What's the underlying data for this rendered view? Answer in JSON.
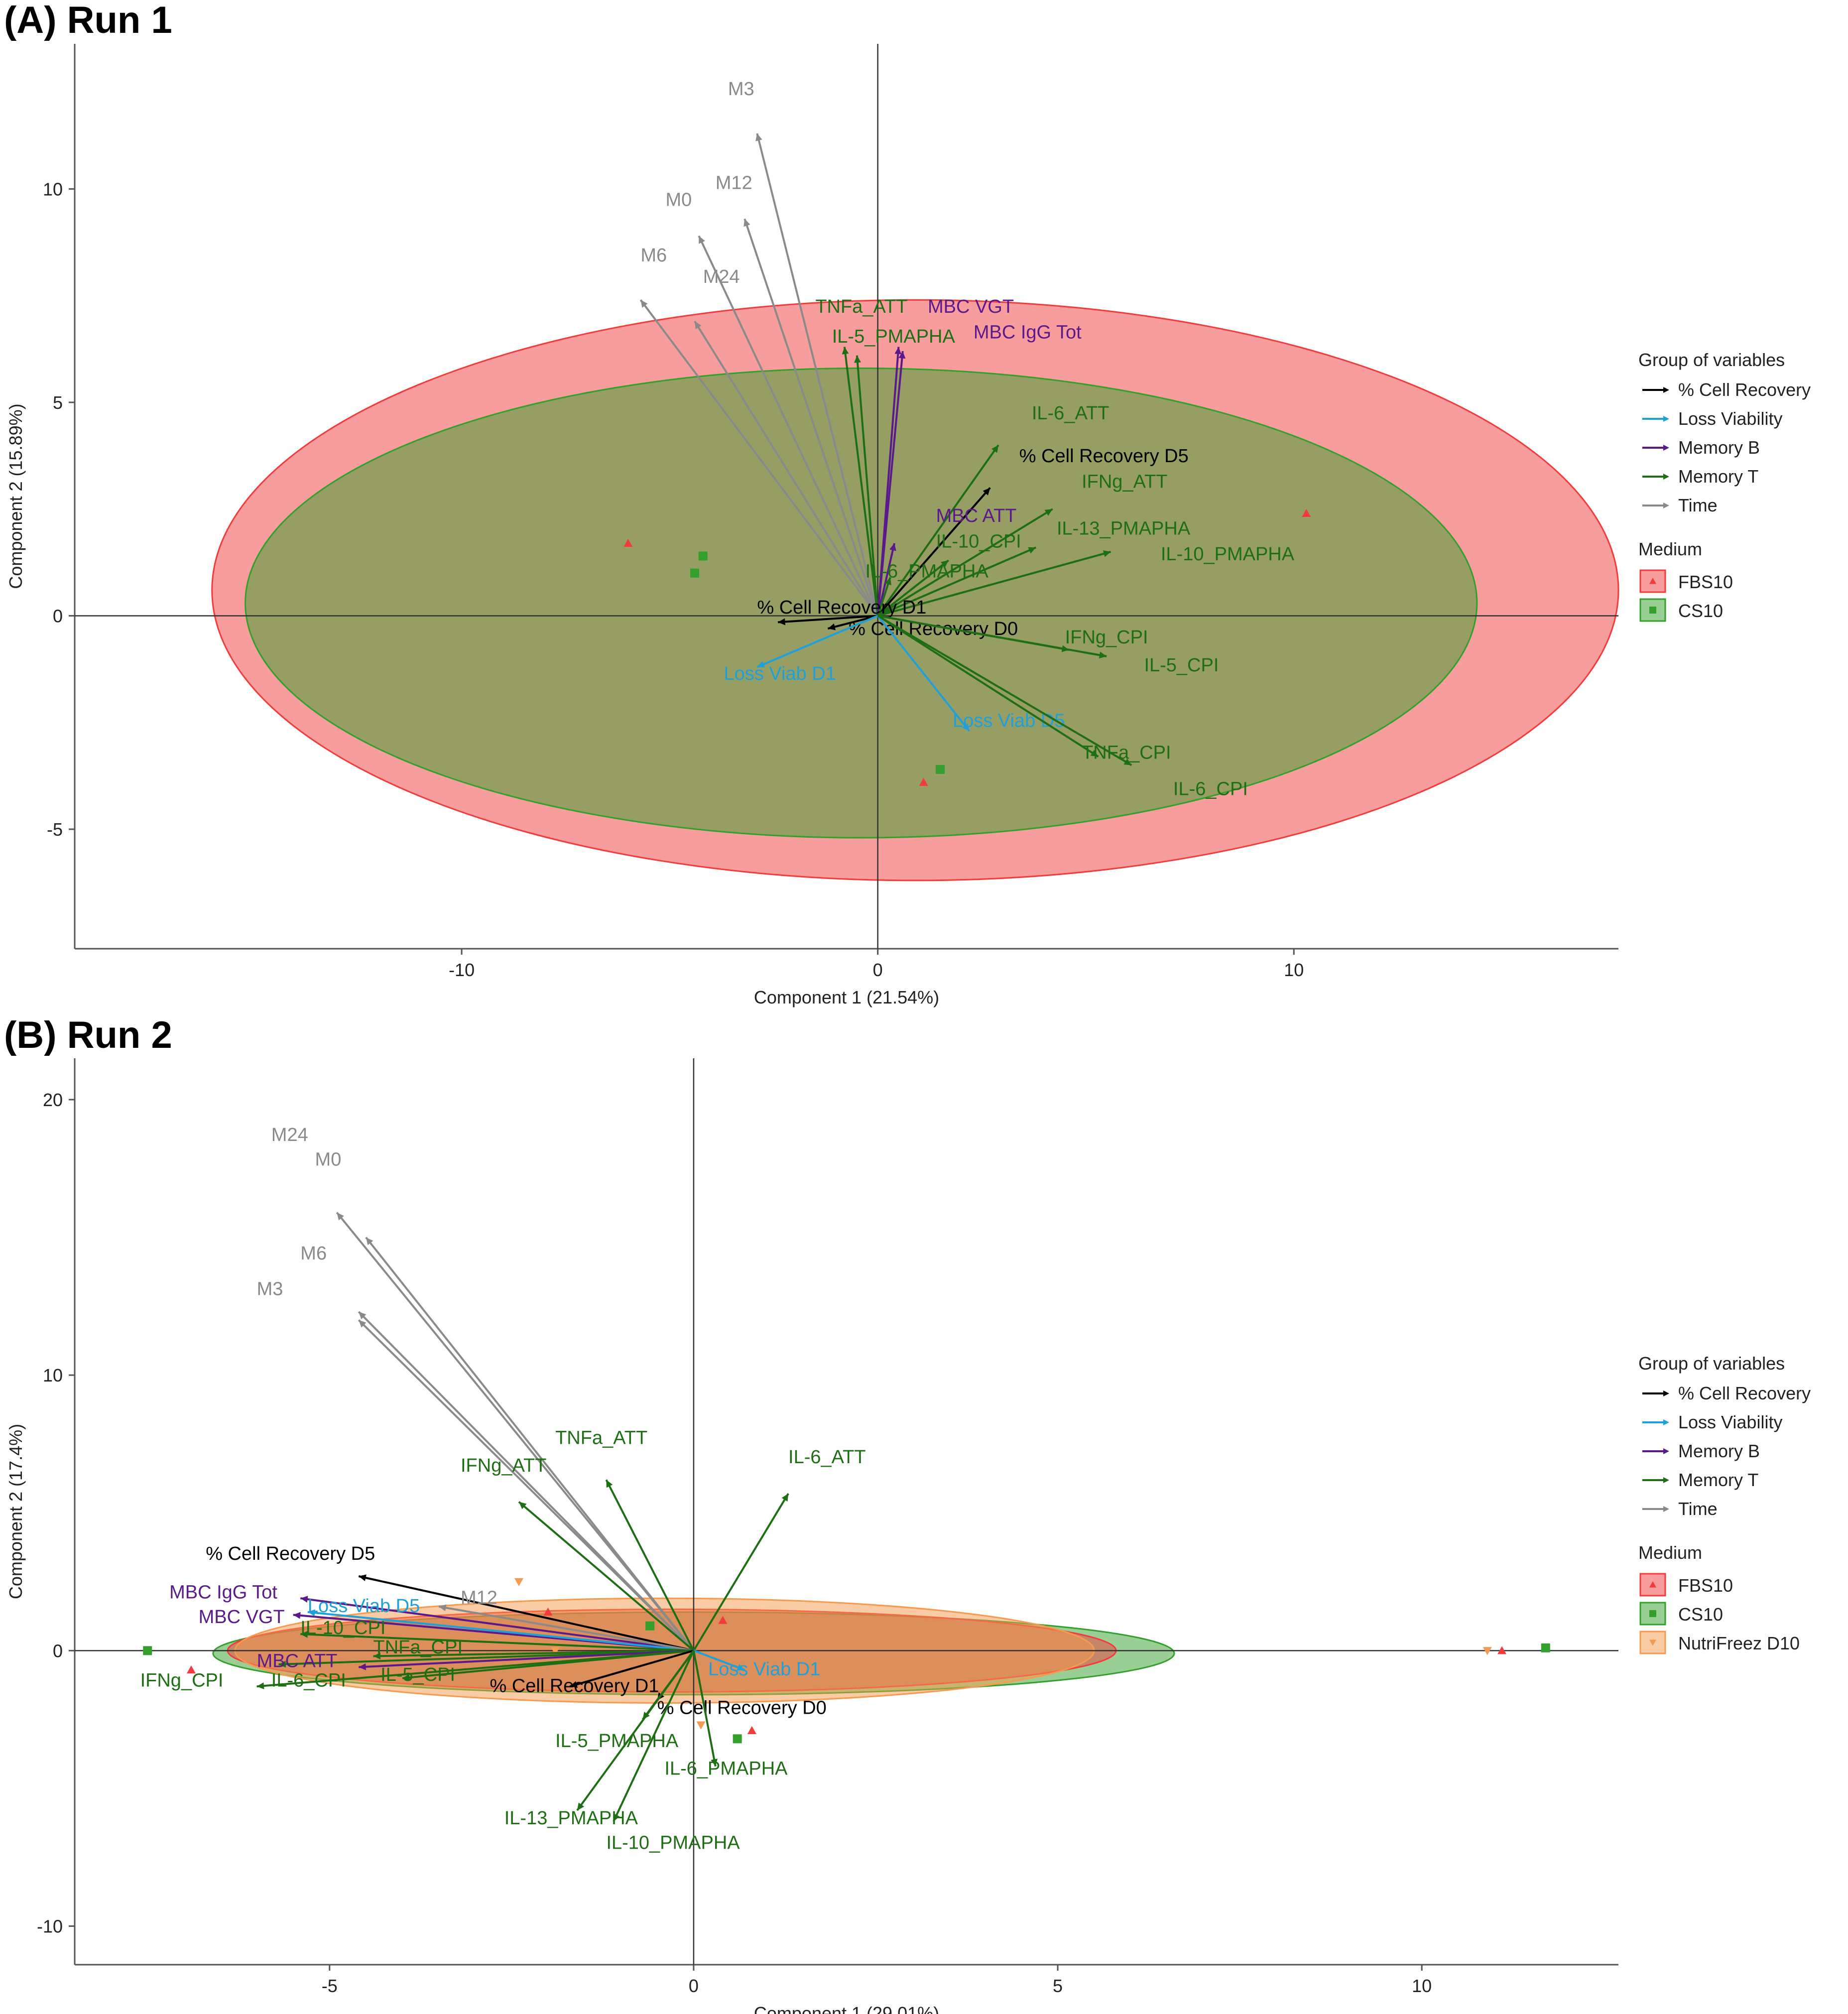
{
  "colors": {
    "cell_recovery": "#000000",
    "loss_viability": "#1fa0d8",
    "memory_b": "#5b1a8a",
    "memory_t": "#1e6e14",
    "time": "#8a8a8a",
    "fbs10": "#f23b3b",
    "cs10": "#33a02c",
    "nutrifreez": "#f59a4e"
  },
  "chart_data": [
    {
      "type": "scatter",
      "panel_title": "(A) Run 1",
      "xlabel": "Component 1 (21.54%)",
      "ylabel": "Component 2 (15.89%)",
      "xlim": [
        -19.3,
        17.8
      ],
      "ylim": [
        -7.8,
        13.4
      ],
      "xticks": [
        -10,
        0,
        10
      ],
      "yticks": [
        -5,
        0,
        5,
        10
      ],
      "xtick_labels": [
        "-10",
        "0",
        "10"
      ],
      "ytick_labels": [
        "-5",
        "0",
        "5",
        "10"
      ],
      "legend": {
        "groups_title": "Group of variables",
        "groups": [
          {
            "name": "% Cell Recovery",
            "color_key": "cell_recovery"
          },
          {
            "name": "Loss Viability",
            "color_key": "loss_viability"
          },
          {
            "name": "Memory B",
            "color_key": "memory_b"
          },
          {
            "name": "Memory T",
            "color_key": "memory_t"
          },
          {
            "name": "Time",
            "color_key": "time"
          }
        ],
        "medium_title": "Medium",
        "media": [
          {
            "name": "FBS10",
            "color_key": "fbs10",
            "marker": "triangle"
          },
          {
            "name": "CS10",
            "color_key": "cs10",
            "marker": "square"
          }
        ]
      },
      "ellipses": [
        {
          "name": "FBS10",
          "color_key": "fbs10",
          "cx": 0.9,
          "cy": 0.6,
          "rx": 16.9,
          "ry": 6.8
        },
        {
          "name": "CS10",
          "color_key": "cs10",
          "cx": -0.4,
          "cy": 0.3,
          "rx": 14.8,
          "ry": 5.5
        }
      ],
      "points": [
        {
          "medium": "FBS10",
          "x": -6.0,
          "y": 1.7
        },
        {
          "medium": "FBS10",
          "x": 1.1,
          "y": -3.9
        },
        {
          "medium": "FBS10",
          "x": 10.3,
          "y": 2.4
        },
        {
          "medium": "CS10",
          "x": -4.2,
          "y": 1.4
        },
        {
          "medium": "CS10",
          "x": -4.4,
          "y": 1.0
        },
        {
          "medium": "CS10",
          "x": 1.5,
          "y": -3.6
        }
      ],
      "vectors": [
        {
          "label": "M3",
          "group": "time",
          "x": -2.9,
          "y": 11.3,
          "lx": -3.6,
          "ly": 12.2
        },
        {
          "label": "M12",
          "group": "time",
          "x": -3.2,
          "y": 9.3,
          "lx": -3.9,
          "ly": 10.0
        },
        {
          "label": "M0",
          "group": "time",
          "x": -4.3,
          "y": 8.9,
          "lx": -5.1,
          "ly": 9.6
        },
        {
          "label": "M6",
          "group": "time",
          "x": -5.7,
          "y": 7.4,
          "lx": -5.7,
          "ly": 8.3
        },
        {
          "label": "M24",
          "group": "time",
          "x": -4.4,
          "y": 6.9,
          "lx": -4.2,
          "ly": 7.8
        },
        {
          "label": "TNFa_ATT",
          "group": "memory_t",
          "x": -0.8,
          "y": 6.3,
          "lx": -1.5,
          "ly": 7.1
        },
        {
          "label": "IL-5_PMAPHA",
          "group": "memory_t",
          "x": -0.5,
          "y": 6.1,
          "lx": -1.1,
          "ly": 6.4
        },
        {
          "label": "MBC VGT",
          "group": "memory_b",
          "x": 0.5,
          "y": 6.3,
          "lx": 1.2,
          "ly": 7.1
        },
        {
          "label": "MBC IgG Tot",
          "group": "memory_b",
          "x": 0.6,
          "y": 6.2,
          "lx": 2.3,
          "ly": 6.5
        },
        {
          "label": "IL-6_ATT",
          "group": "memory_t",
          "x": 2.9,
          "y": 4.0,
          "lx": 3.7,
          "ly": 4.6
        },
        {
          "label": "% Cell Recovery D5",
          "group": "cell_recovery",
          "x": 2.7,
          "y": 3.0,
          "lx": 3.4,
          "ly": 3.6
        },
        {
          "label": "IFNg_ATT",
          "group": "memory_t",
          "x": 4.2,
          "y": 2.5,
          "lx": 4.9,
          "ly": 3.0
        },
        {
          "label": "MBC ATT",
          "group": "memory_b",
          "x": 0.4,
          "y": 1.7,
          "lx": 1.4,
          "ly": 2.2
        },
        {
          "label": "IL-13_PMAPHA",
          "group": "memory_t",
          "x": 3.8,
          "y": 1.6,
          "lx": 4.3,
          "ly": 1.9
        },
        {
          "label": "IL-10_CPI",
          "group": "memory_t",
          "x": 1.7,
          "y": 1.3,
          "lx": 1.4,
          "ly": 1.6
        },
        {
          "label": "IL-10_PMAPHA",
          "group": "memory_t",
          "x": 5.6,
          "y": 1.5,
          "lx": 6.8,
          "ly": 1.3
        },
        {
          "label": "IL-6_PMAPHA",
          "group": "memory_t",
          "x": 0.3,
          "y": 0.9,
          "lx": -0.3,
          "ly": 0.9
        },
        {
          "label": "% Cell Recovery D1",
          "group": "cell_recovery",
          "x": -2.4,
          "y": -0.15,
          "lx": -2.9,
          "ly": 0.05
        },
        {
          "label": "% Cell Recovery D0",
          "group": "cell_recovery",
          "x": -1.2,
          "y": -0.3,
          "lx": -0.7,
          "ly": -0.45
        },
        {
          "label": "Loss Viab D1",
          "group": "loss_viability",
          "x": -2.9,
          "y": -1.2,
          "lx": -3.7,
          "ly": -1.5
        },
        {
          "label": "Loss Viab D5",
          "group": "loss_viability",
          "x": 2.2,
          "y": -2.7,
          "lx": 1.8,
          "ly": -2.6
        },
        {
          "label": "IFNg_CPI",
          "group": "memory_t",
          "x": 4.6,
          "y": -0.8,
          "lx": 4.5,
          "ly": -0.65
        },
        {
          "label": "IL-5_CPI",
          "group": "memory_t",
          "x": 5.5,
          "y": -0.95,
          "lx": 6.4,
          "ly": -1.3
        },
        {
          "label": "TNFa_CPI",
          "group": "memory_t",
          "x": 5.3,
          "y": -3.3,
          "lx": 4.9,
          "ly": -3.35
        },
        {
          "label": "IL-6_CPI",
          "group": "memory_t",
          "x": 6.1,
          "y": -3.5,
          "lx": 7.1,
          "ly": -4.2
        }
      ]
    },
    {
      "type": "scatter",
      "panel_title": "(B) Run 2",
      "xlabel": "Component 1 (29.01%)",
      "ylabel": "Component 2 (17.4%)",
      "xlim": [
        -8.5,
        12.7
      ],
      "ylim": [
        -11.4,
        21.5
      ],
      "xticks": [
        -5,
        0,
        5,
        10
      ],
      "yticks": [
        -10,
        0,
        10,
        20
      ],
      "xtick_labels": [
        "-5",
        "0",
        "5",
        "10"
      ],
      "ytick_labels": [
        "-10",
        "0",
        "10",
        "20"
      ],
      "legend": {
        "groups_title": "Group of variables",
        "groups": [
          {
            "name": "% Cell Recovery",
            "color_key": "cell_recovery"
          },
          {
            "name": "Loss Viability",
            "color_key": "loss_viability"
          },
          {
            "name": "Memory B",
            "color_key": "memory_b"
          },
          {
            "name": "Memory T",
            "color_key": "memory_t"
          },
          {
            "name": "Time",
            "color_key": "time"
          }
        ],
        "medium_title": "Medium",
        "media": [
          {
            "name": "FBS10",
            "color_key": "fbs10",
            "marker": "triangle"
          },
          {
            "name": "CS10",
            "color_key": "cs10",
            "marker": "square"
          },
          {
            "name": "NutriFreez D10",
            "color_key": "nutrifreez",
            "marker": "triangle-down"
          }
        ]
      },
      "ellipses": [
        {
          "name": "CS10",
          "color_key": "cs10",
          "cx": 0.0,
          "cy": -0.1,
          "rx": 6.6,
          "ry": 1.5
        },
        {
          "name": "FBS10",
          "color_key": "fbs10",
          "cx": -0.3,
          "cy": 0.0,
          "rx": 6.1,
          "ry": 1.5
        },
        {
          "name": "NutriFreez D10",
          "color_key": "nutrifreez",
          "cx": -0.4,
          "cy": 0.0,
          "rx": 5.9,
          "ry": 1.9
        }
      ],
      "points": [
        {
          "medium": "FBS10",
          "x": -6.9,
          "y": -0.7
        },
        {
          "medium": "FBS10",
          "x": -2.0,
          "y": 1.4
        },
        {
          "medium": "FBS10",
          "x": 0.4,
          "y": 1.1
        },
        {
          "medium": "FBS10",
          "x": 0.8,
          "y": -2.9
        },
        {
          "medium": "FBS10",
          "x": 11.1,
          "y": 0.0
        },
        {
          "medium": "CS10",
          "x": -7.5,
          "y": 0.0
        },
        {
          "medium": "CS10",
          "x": -0.6,
          "y": 0.9
        },
        {
          "medium": "CS10",
          "x": 0.6,
          "y": -3.2
        },
        {
          "medium": "CS10",
          "x": 11.7,
          "y": 0.1
        },
        {
          "medium": "NutriFreez D10",
          "x": -2.4,
          "y": 2.5
        },
        {
          "medium": "NutriFreez D10",
          "x": -1.9,
          "y": 0.0
        },
        {
          "medium": "NutriFreez D10",
          "x": 0.1,
          "y": -2.7
        },
        {
          "medium": "NutriFreez D10",
          "x": 10.9,
          "y": 0.0
        }
      ],
      "vectors": [
        {
          "label": "M24",
          "group": "time",
          "x": -4.9,
          "y": 15.9,
          "lx": -5.8,
          "ly": 18.5
        },
        {
          "label": "M0",
          "group": "time",
          "x": -4.5,
          "y": 15.0,
          "lx": -5.2,
          "ly": 17.6
        },
        {
          "label": "M6",
          "group": "time",
          "x": -4.6,
          "y": 12.3,
          "lx": -5.4,
          "ly": 14.2
        },
        {
          "label": "M3",
          "group": "time",
          "x": -4.6,
          "y": 12.0,
          "lx": -6.0,
          "ly": 12.9
        },
        {
          "label": "TNFa_ATT",
          "group": "memory_t",
          "x": -1.2,
          "y": 6.2,
          "lx": -1.9,
          "ly": 7.5
        },
        {
          "label": "IFNg_ATT",
          "group": "memory_t",
          "x": -2.4,
          "y": 5.4,
          "lx": -3.2,
          "ly": 6.5
        },
        {
          "label": "IL-6_ATT",
          "group": "memory_t",
          "x": 1.3,
          "y": 5.7,
          "lx": 1.3,
          "ly": 6.8
        },
        {
          "label": "% Cell Recovery D5",
          "group": "cell_recovery",
          "x": -4.6,
          "y": 2.7,
          "lx": -6.7,
          "ly": 3.3
        },
        {
          "label": "MBC IgG Tot",
          "group": "memory_b",
          "x": -5.4,
          "y": 1.9,
          "lx": -7.2,
          "ly": 1.9
        },
        {
          "label": "MBC VGT",
          "group": "memory_b",
          "x": -5.5,
          "y": 1.3,
          "lx": -6.8,
          "ly": 1.0
        },
        {
          "label": "Loss Viab D5",
          "group": "loss_viability",
          "x": -5.3,
          "y": 1.4,
          "lx": -5.3,
          "ly": 1.4
        },
        {
          "label": "M12",
          "group": "time",
          "x": -3.5,
          "y": 1.6,
          "lx": -3.2,
          "ly": 1.7
        },
        {
          "label": "IL-10_CPI",
          "group": "memory_t",
          "x": -5.4,
          "y": 0.6,
          "lx": -5.4,
          "ly": 0.6
        },
        {
          "label": "TNFa_CPI",
          "group": "memory_t",
          "x": -4.4,
          "y": -0.2,
          "lx": -4.4,
          "ly": -0.1
        },
        {
          "label": "IFNg_CPI",
          "group": "memory_t",
          "x": -5.7,
          "y": -0.5,
          "lx": -7.6,
          "ly": -1.3
        },
        {
          "label": "MBC ATT",
          "group": "memory_b",
          "x": -4.6,
          "y": -0.6,
          "lx": -6.0,
          "ly": -0.6
        },
        {
          "label": "IL-6_CPI",
          "group": "memory_t",
          "x": -6.0,
          "y": -1.3,
          "lx": -5.8,
          "ly": -1.3
        },
        {
          "label": "IL-5_CPI",
          "group": "memory_t",
          "x": -4.0,
          "y": -1.0,
          "lx": -4.3,
          "ly": -1.1
        },
        {
          "label": "% Cell Recovery D1",
          "group": "cell_recovery",
          "x": -1.7,
          "y": -1.3,
          "lx": -2.8,
          "ly": -1.5
        },
        {
          "label": "Loss Viab D1",
          "group": "loss_viability",
          "x": 0.7,
          "y": -0.7,
          "lx": 0.2,
          "ly": -0.9
        },
        {
          "label": "% Cell Recovery D0",
          "group": "cell_recovery",
          "x": -0.5,
          "y": -1.8,
          "lx": -0.5,
          "ly": -2.3
        },
        {
          "label": "IL-5_PMAPHA",
          "group": "memory_t",
          "x": -0.7,
          "y": -2.5,
          "lx": -1.9,
          "ly": -3.5
        },
        {
          "label": "IL-6_PMAPHA",
          "group": "memory_t",
          "x": 0.3,
          "y": -4.2,
          "lx": -0.4,
          "ly": -4.5
        },
        {
          "label": "IL-13_PMAPHA",
          "group": "memory_t",
          "x": -1.6,
          "y": -5.8,
          "lx": -2.6,
          "ly": -6.3
        },
        {
          "label": "IL-10_PMAPHA",
          "group": "memory_t",
          "x": -1.1,
          "y": -6.2,
          "lx": -1.2,
          "ly": -7.2
        }
      ]
    }
  ]
}
